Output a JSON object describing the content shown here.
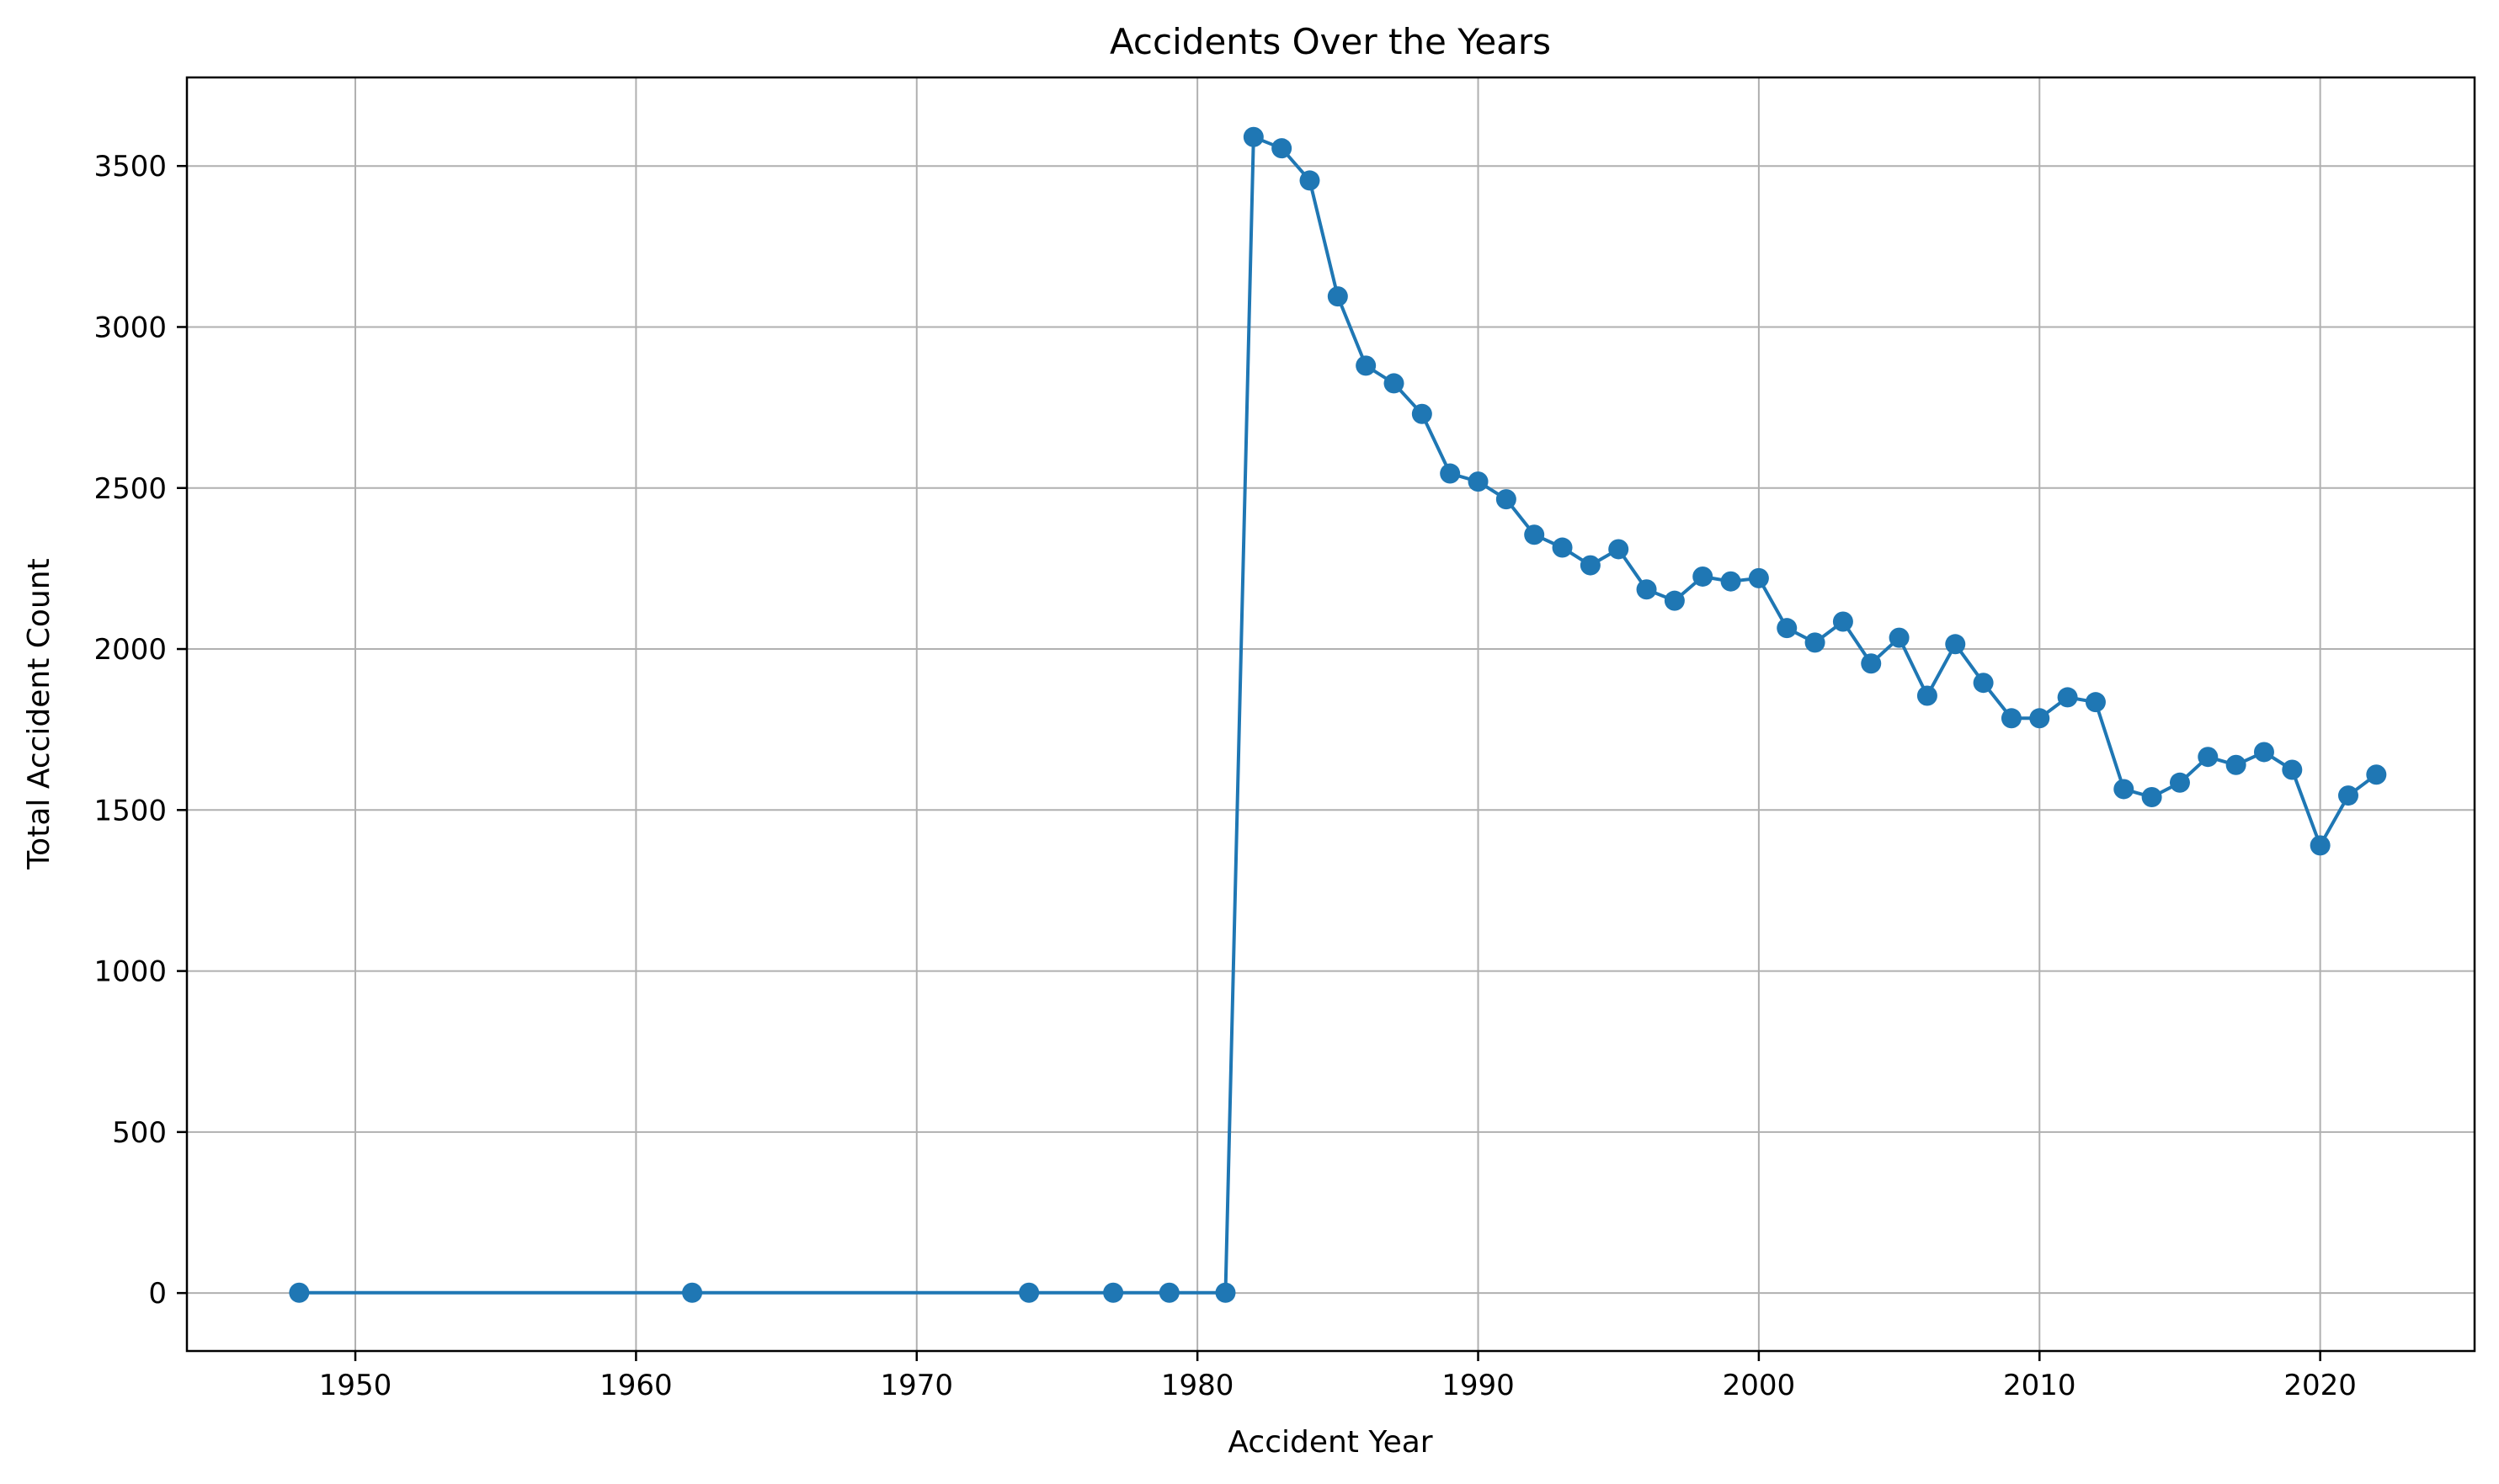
{
  "chart_data": {
    "type": "line",
    "title": "Accidents Over the Years",
    "xlabel": "Accident Year",
    "ylabel": "Total Accident Count",
    "xlim": [
      1944,
      2025.5
    ],
    "ylim": [
      -180,
      3775
    ],
    "xticks": [
      1950,
      1960,
      1970,
      1980,
      1990,
      2000,
      2010,
      2020
    ],
    "yticks": [
      0,
      500,
      1000,
      1500,
      2000,
      2500,
      3000,
      3500
    ],
    "grid": true,
    "marker": "circle",
    "color": "#1f77b4",
    "series": [
      {
        "x": [
          1948,
          1962,
          1974,
          1977,
          1979,
          1981,
          1982,
          1983,
          1984,
          1985,
          1986,
          1987,
          1988,
          1989,
          1990,
          1991,
          1992,
          1993,
          1994,
          1995,
          1996,
          1997,
          1998,
          1999,
          2000,
          2001,
          2002,
          2003,
          2004,
          2005,
          2006,
          2007,
          2008,
          2009,
          2010,
          2011,
          2012,
          2013,
          2014,
          2015,
          2016,
          2017,
          2018,
          2019,
          2020,
          2021,
          2022
        ],
        "y": [
          1,
          1,
          1,
          1,
          1,
          1,
          3590,
          3555,
          3455,
          3095,
          2880,
          2825,
          2730,
          2545,
          2520,
          2465,
          2355,
          2315,
          2260,
          2310,
          2185,
          2150,
          2225,
          2210,
          2220,
          2065,
          2020,
          2085,
          1955,
          2035,
          1855,
          2015,
          1895,
          1785,
          1785,
          1850,
          1835,
          1565,
          1540,
          1585,
          1665,
          1640,
          1680,
          1625,
          1390,
          1545,
          1610
        ]
      }
    ]
  }
}
